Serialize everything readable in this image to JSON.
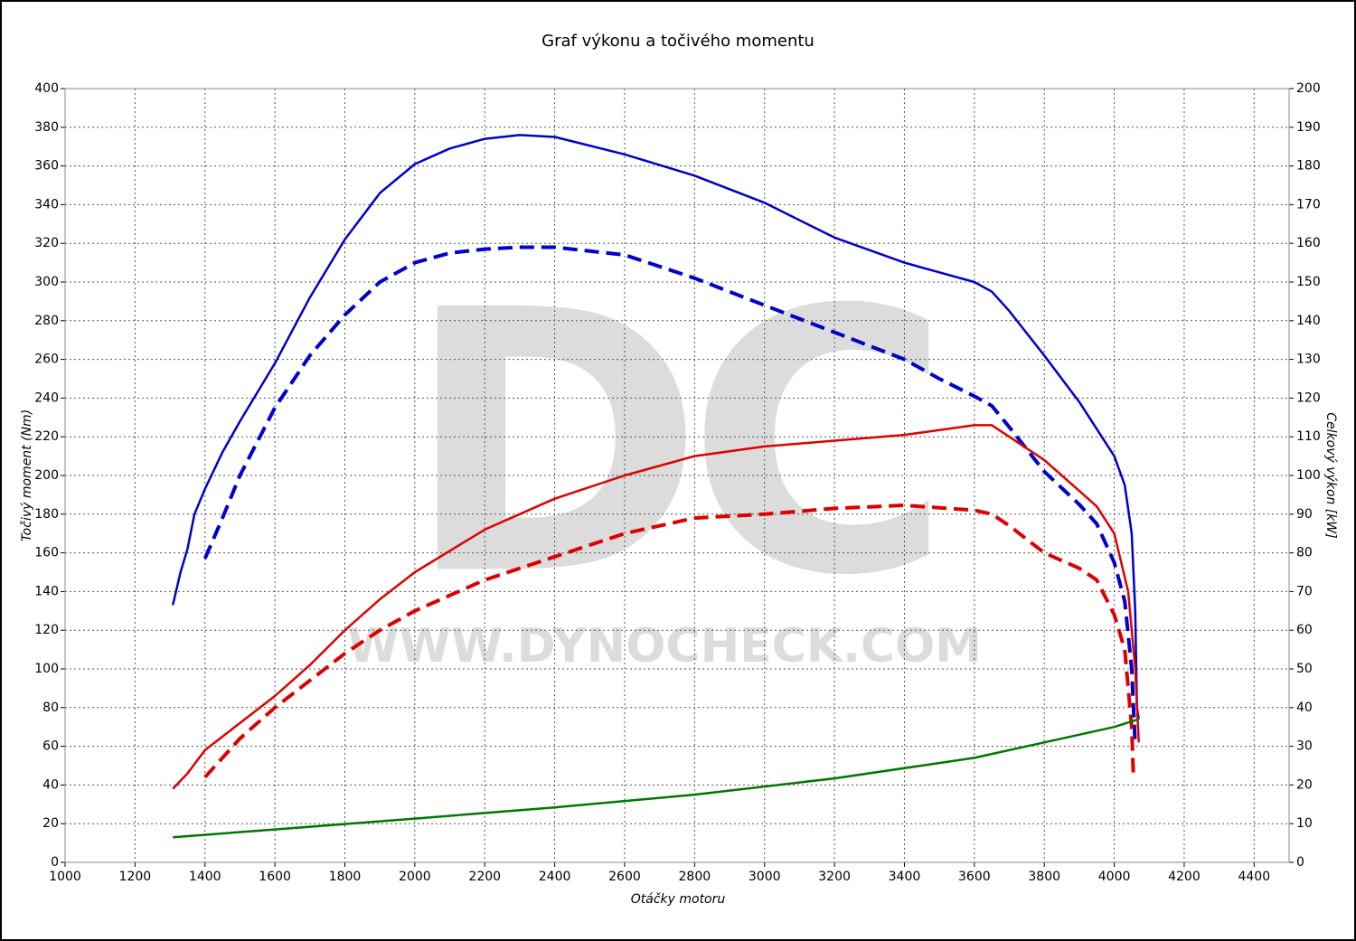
{
  "chart_data": {
    "type": "line",
    "title": "Graf výkonu a točivého momentu",
    "xlabel": "Otáčky motoru",
    "ylabel": "Točivý moment (Nm)",
    "y2label": "Celkový výkon [kW]",
    "watermark": [
      "DC",
      "WWW.DYNOCHECK.COM"
    ],
    "xlim": [
      1000,
      4500
    ],
    "xticks": [
      1000,
      1200,
      1400,
      1600,
      1800,
      2000,
      2200,
      2400,
      2600,
      2800,
      3000,
      3200,
      3400,
      3600,
      3800,
      4000,
      4200,
      4400
    ],
    "ylim": [
      0,
      400
    ],
    "yticks": [
      0,
      20,
      40,
      60,
      80,
      100,
      120,
      140,
      160,
      180,
      200,
      220,
      240,
      260,
      280,
      300,
      320,
      340,
      360,
      380,
      400
    ],
    "y2lim": [
      0,
      200
    ],
    "y2ticks": [
      0,
      10,
      20,
      30,
      40,
      50,
      60,
      70,
      80,
      90,
      100,
      110,
      120,
      130,
      140,
      150,
      160,
      170,
      180,
      190,
      200
    ],
    "grid": true,
    "series": [
      {
        "color": "#0000cc",
        "style": "solid",
        "x": [
          1308,
          1330,
          1350,
          1370,
          1400,
          1450,
          1500,
          1600,
          1700,
          1800,
          1900,
          2000,
          2100,
          2200,
          2300,
          2400,
          2600,
          2800,
          3000,
          3200,
          3400,
          3500,
          3600,
          3650,
          3700,
          3800,
          3900,
          4000,
          4030,
          4050,
          4060,
          4065,
          4070
        ],
        "values": [
          133,
          150,
          162,
          180,
          193,
          212,
          228,
          258,
          292,
          322,
          346,
          361,
          369,
          374,
          376,
          375,
          366,
          355,
          341,
          323,
          310,
          305,
          300,
          295,
          285,
          262,
          238,
          210,
          195,
          170,
          130,
          80,
          74
        ]
      },
      {
        "color": "#0000cc",
        "style": "dashed",
        "x": [
          1400,
          1450,
          1500,
          1600,
          1700,
          1800,
          1900,
          2000,
          2100,
          2200,
          2300,
          2400,
          2600,
          2800,
          3000,
          3200,
          3400,
          3500,
          3600,
          3650,
          3700,
          3800,
          3900,
          3950,
          4000,
          4030,
          4050,
          4060
        ],
        "values": [
          157,
          178,
          200,
          235,
          262,
          283,
          300,
          310,
          315,
          317,
          318,
          318,
          314,
          302,
          288,
          274,
          260,
          250,
          241,
          236,
          225,
          202,
          185,
          175,
          155,
          135,
          100,
          60
        ]
      },
      {
        "color": "#dd0000",
        "style": "solid",
        "axis": "y2",
        "x": [
          1308,
          1350,
          1400,
          1500,
          1600,
          1700,
          1800,
          1900,
          2000,
          2200,
          2400,
          2600,
          2800,
          3000,
          3200,
          3400,
          3600,
          3650,
          3700,
          3800,
          3900,
          3950,
          4000,
          4040,
          4060,
          4070
        ],
        "values": [
          19,
          23,
          29,
          36,
          43,
          51,
          60,
          68,
          75,
          86,
          94,
          100,
          105,
          107.5,
          109,
          110.5,
          113,
          113,
          110,
          104,
          96,
          92,
          85,
          70,
          50,
          31
        ]
      },
      {
        "color": "#dd0000",
        "style": "dashed",
        "axis": "y2",
        "x": [
          1400,
          1450,
          1500,
          1600,
          1700,
          1800,
          1900,
          2000,
          2200,
          2400,
          2600,
          2800,
          3000,
          3200,
          3400,
          3600,
          3650,
          3700,
          3800,
          3900,
          3950,
          4000,
          4030,
          4050,
          4055
        ],
        "values": [
          22,
          27,
          32,
          40,
          47,
          54,
          60,
          65,
          73,
          79,
          85,
          89,
          90,
          91.5,
          92.3,
          91,
          90,
          87,
          80,
          76,
          73,
          64,
          55,
          35,
          22
        ]
      },
      {
        "color": "#007700",
        "style": "solid",
        "axis": "y2",
        "x": [
          1308,
          1600,
          2000,
          2400,
          2800,
          3200,
          3600,
          3800,
          4000,
          4070
        ],
        "values": [
          6.5,
          8.5,
          11.3,
          14.2,
          17.5,
          21.7,
          27,
          31,
          35,
          37
        ]
      }
    ]
  }
}
